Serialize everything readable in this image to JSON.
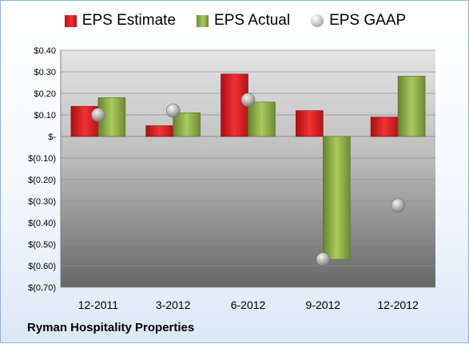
{
  "chart_data": {
    "type": "bar",
    "categories": [
      "12-2011",
      "3-2012",
      "6-2012",
      "9-2012",
      "12-2012"
    ],
    "series": [
      {
        "name": "EPS Estimate",
        "kind": "bar",
        "color": "#e8272b",
        "values": [
          0.14,
          0.05,
          0.29,
          0.12,
          0.09
        ]
      },
      {
        "name": "EPS Actual",
        "kind": "bar",
        "color": "#94b84a",
        "values": [
          0.18,
          0.11,
          0.16,
          -0.57,
          0.28
        ]
      },
      {
        "name": "EPS GAAP",
        "kind": "scatter",
        "color": "#b0b0b0",
        "values": [
          0.1,
          0.12,
          0.17,
          -0.57,
          -0.32
        ]
      }
    ],
    "ylim": [
      -0.7,
      0.4
    ],
    "yticks": [
      0.4,
      0.3,
      0.2,
      0.1,
      0,
      -0.1,
      -0.2,
      -0.3,
      -0.4,
      -0.5,
      -0.6,
      -0.7
    ],
    "ytick_labels": [
      "$0.40",
      "$0.30",
      "$0.20",
      "$0.10",
      "$-",
      "$(0.10)",
      "$(0.20)",
      "$(0.30)",
      "$(0.40)",
      "$(0.50)",
      "$(0.60)",
      "$(0.70)"
    ],
    "grid": true,
    "legend_position": "top",
    "company": "Ryman Hospitality Properties"
  }
}
